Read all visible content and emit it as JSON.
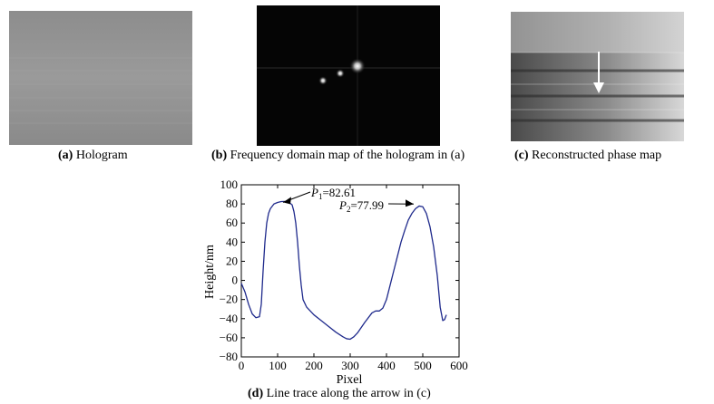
{
  "panels": [
    {
      "letter": "(a)",
      "caption": "Hologram"
    },
    {
      "letter": "(b)",
      "caption": "Frequency domain map of the hologram in (a)"
    },
    {
      "letter": "(c)",
      "caption": "Reconstructed phase map"
    },
    {
      "letter": "(d)",
      "caption": "Line trace along the arrow in (c)"
    }
  ],
  "chart_data": {
    "type": "line",
    "xlabel": "Pixel",
    "ylabel": "Height/nm",
    "xlim": [
      0,
      600
    ],
    "ylim": [
      -80,
      100
    ],
    "xticks": [
      0,
      100,
      200,
      300,
      400,
      500,
      600
    ],
    "yticks": [
      -80,
      -60,
      -40,
      -20,
      0,
      20,
      40,
      60,
      80,
      100
    ],
    "grid": false,
    "series": [
      {
        "color": "#1f2a8c",
        "x": [
          0,
          10,
          20,
          30,
          40,
          50,
          55,
          60,
          65,
          70,
          75,
          80,
          90,
          100,
          110,
          120,
          130,
          140,
          145,
          150,
          155,
          160,
          165,
          170,
          180,
          200,
          220,
          240,
          260,
          280,
          290,
          300,
          310,
          320,
          340,
          360,
          370,
          380,
          390,
          400,
          410,
          420,
          430,
          440,
          450,
          460,
          470,
          480,
          490,
          500,
          510,
          520,
          530,
          540,
          548,
          555,
          560,
          565
        ],
        "y": [
          -3,
          -12,
          -25,
          -35,
          -39,
          -38,
          -25,
          10,
          40,
          60,
          70,
          75,
          80,
          81.5,
          82.5,
          82.6,
          82,
          79,
          72,
          60,
          40,
          15,
          -5,
          -20,
          -28,
          -36,
          -42,
          -48,
          -54,
          -59,
          -61,
          -61.5,
          -59,
          -55,
          -44,
          -34,
          -32,
          -32,
          -29,
          -20,
          -5,
          10,
          25,
          40,
          52,
          63,
          70,
          75,
          77.8,
          77,
          70,
          56,
          35,
          5,
          -28,
          -42,
          -41,
          -36
        ]
      }
    ],
    "annotations": [
      {
        "label": "P",
        "sub": "1",
        "value": "=82.61",
        "x": 120,
        "y": 82.61
      },
      {
        "label": "P",
        "sub": "2",
        "value": "=77.99",
        "x": 490,
        "y": 77.99
      }
    ]
  }
}
